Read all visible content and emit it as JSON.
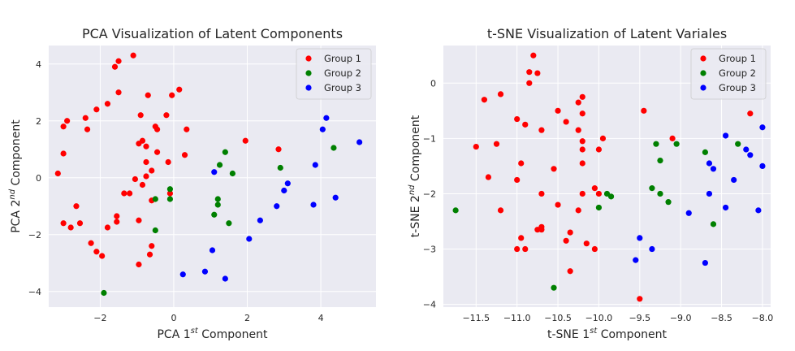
{
  "chart_data": [
    {
      "type": "scatter",
      "title": "PCA Visualization of Latent Components",
      "xlabel": {
        "base": "PCA 1",
        "sup": "st",
        "rest": " Component"
      },
      "ylabel": {
        "base": "PCA 2",
        "sup": "nd",
        "rest": " Component"
      },
      "xlim": [
        -3.4,
        5.5
      ],
      "ylim": [
        -4.55,
        4.65
      ],
      "xticks": [
        -2,
        0,
        2,
        4
      ],
      "yticks": [
        -4,
        -2,
        0,
        2,
        4
      ],
      "xtick_labels": [
        "−2",
        "0",
        "2",
        "4"
      ],
      "ytick_labels": [
        "−4",
        "−2",
        "0",
        "2",
        "4"
      ],
      "grid": true,
      "legend_position": "top-right",
      "series": [
        {
          "name": "Group 1",
          "color": "#ff0000",
          "points": [
            [
              -1.1,
              4.3
            ],
            [
              -1.5,
              4.1
            ],
            [
              -1.6,
              3.9
            ],
            [
              -0.7,
              2.9
            ],
            [
              -0.05,
              2.9
            ],
            [
              0.15,
              3.1
            ],
            [
              -1.5,
              3.0
            ],
            [
              -1.8,
              2.6
            ],
            [
              -3.0,
              1.8
            ],
            [
              -2.9,
              2.0
            ],
            [
              -2.4,
              2.1
            ],
            [
              -2.35,
              1.7
            ],
            [
              -2.1,
              2.4
            ],
            [
              -0.9,
              2.2
            ],
            [
              -0.2,
              2.2
            ],
            [
              -0.5,
              1.8
            ],
            [
              -0.45,
              1.7
            ],
            [
              -0.85,
              1.3
            ],
            [
              -0.95,
              1.2
            ],
            [
              -0.75,
              1.1
            ],
            [
              -0.45,
              0.9
            ],
            [
              0.35,
              1.7
            ],
            [
              0.3,
              0.8
            ],
            [
              -3.0,
              0.85
            ],
            [
              -0.15,
              0.55
            ],
            [
              -0.75,
              0.55
            ],
            [
              -0.6,
              0.25
            ],
            [
              -3.15,
              0.15
            ],
            [
              -0.75,
              0.05
            ],
            [
              -1.05,
              -0.05
            ],
            [
              -0.85,
              -0.25
            ],
            [
              -0.1,
              -0.55
            ],
            [
              -1.35,
              -0.55
            ],
            [
              -1.2,
              -0.55
            ],
            [
              -0.6,
              -0.8
            ],
            [
              -2.65,
              -1.0
            ],
            [
              -1.55,
              -1.35
            ],
            [
              -1.55,
              -1.55
            ],
            [
              -0.95,
              -1.5
            ],
            [
              -3.0,
              -1.6
            ],
            [
              -2.55,
              -1.6
            ],
            [
              -2.8,
              -1.75
            ],
            [
              -1.8,
              -1.75
            ],
            [
              -2.25,
              -2.3
            ],
            [
              -2.1,
              -2.6
            ],
            [
              -1.95,
              -2.75
            ],
            [
              -0.6,
              -2.4
            ],
            [
              -0.65,
              -2.7
            ],
            [
              -0.95,
              -3.05
            ],
            [
              1.95,
              1.3
            ],
            [
              2.85,
              1.0
            ]
          ]
        },
        {
          "name": "Group 2",
          "color": "#008000",
          "points": [
            [
              1.4,
              0.9
            ],
            [
              1.25,
              0.45
            ],
            [
              1.6,
              0.15
            ],
            [
              -0.1,
              -0.4
            ],
            [
              -0.1,
              -0.75
            ],
            [
              -0.5,
              -0.75
            ],
            [
              1.2,
              -0.75
            ],
            [
              1.2,
              -0.95
            ],
            [
              1.1,
              -1.3
            ],
            [
              1.5,
              -1.6
            ],
            [
              -0.5,
              -1.85
            ],
            [
              2.9,
              0.35
            ],
            [
              4.35,
              1.05
            ],
            [
              -1.9,
              -4.05
            ]
          ]
        },
        {
          "name": "Group 3",
          "color": "#0000ff",
          "points": [
            [
              4.15,
              2.1
            ],
            [
              4.05,
              1.7
            ],
            [
              5.05,
              1.25
            ],
            [
              3.85,
              0.45
            ],
            [
              1.1,
              0.2
            ],
            [
              3.1,
              -0.2
            ],
            [
              3.0,
              -0.45
            ],
            [
              4.4,
              -0.7
            ],
            [
              3.8,
              -0.95
            ],
            [
              2.8,
              -1.0
            ],
            [
              2.35,
              -1.5
            ],
            [
              2.05,
              -2.15
            ],
            [
              1.05,
              -2.55
            ],
            [
              0.25,
              -3.4
            ],
            [
              0.85,
              -3.3
            ],
            [
              1.4,
              -3.55
            ]
          ]
        }
      ]
    },
    {
      "type": "scatter",
      "title": "t-SNE Visualization of Latent Variales",
      "xlabel": {
        "base": "t-SNE 1",
        "sup": "st",
        "rest": " Component"
      },
      "ylabel": {
        "base": "t-SNE 2",
        "sup": "nd",
        "rest": " Component"
      },
      "xlim": [
        -11.9,
        -7.9
      ],
      "ylim": [
        -4.05,
        0.68
      ],
      "xticks": [
        -11.5,
        -11.0,
        -10.5,
        -10.0,
        -9.5,
        -9.0,
        -8.5,
        -8.0
      ],
      "yticks": [
        0,
        -1,
        -2,
        -3,
        -4
      ],
      "xtick_labels": [
        "−11.5",
        "−11.0",
        "−10.5",
        "−10.0",
        "−9.5",
        "−9.0",
        "−8.5",
        "−8.0"
      ],
      "ytick_labels": [
        "0",
        "−1",
        "−2",
        "−3",
        "−4"
      ],
      "grid": true,
      "legend_position": "top-right",
      "series": [
        {
          "name": "Group 1",
          "color": "#ff0000",
          "points": [
            [
              -10.8,
              0.5
            ],
            [
              -10.85,
              0.2
            ],
            [
              -10.75,
              0.18
            ],
            [
              -10.85,
              0.0
            ],
            [
              -10.2,
              -0.25
            ],
            [
              -10.25,
              -0.35
            ],
            [
              -11.2,
              -0.2
            ],
            [
              -11.4,
              -0.3
            ],
            [
              -10.5,
              -0.5
            ],
            [
              -10.2,
              -0.55
            ],
            [
              -11.0,
              -0.65
            ],
            [
              -10.4,
              -0.7
            ],
            [
              -10.9,
              -0.75
            ],
            [
              -10.7,
              -0.85
            ],
            [
              -10.25,
              -0.85
            ],
            [
              -9.95,
              -1.0
            ],
            [
              -10.2,
              -1.05
            ],
            [
              -10.2,
              -1.2
            ],
            [
              -10.0,
              -1.2
            ],
            [
              -11.5,
              -1.15
            ],
            [
              -11.25,
              -1.1
            ],
            [
              -10.2,
              -1.45
            ],
            [
              -10.95,
              -1.45
            ],
            [
              -10.55,
              -1.55
            ],
            [
              -11.35,
              -1.7
            ],
            [
              -11.0,
              -1.75
            ],
            [
              -10.05,
              -1.9
            ],
            [
              -10.0,
              -2.0
            ],
            [
              -10.2,
              -2.0
            ],
            [
              -10.7,
              -2.0
            ],
            [
              -10.5,
              -2.2
            ],
            [
              -11.2,
              -2.3
            ],
            [
              -10.25,
              -2.3
            ],
            [
              -10.7,
              -2.6
            ],
            [
              -10.75,
              -2.65
            ],
            [
              -10.7,
              -2.65
            ],
            [
              -10.35,
              -2.7
            ],
            [
              -10.95,
              -2.8
            ],
            [
              -10.4,
              -2.85
            ],
            [
              -10.15,
              -2.9
            ],
            [
              -11.0,
              -3.0
            ],
            [
              -10.9,
              -3.0
            ],
            [
              -10.05,
              -3.0
            ],
            [
              -10.35,
              -3.4
            ],
            [
              -9.5,
              -3.9
            ],
            [
              -9.45,
              -0.5
            ],
            [
              -9.1,
              -1.0
            ],
            [
              -8.15,
              -0.55
            ]
          ]
        },
        {
          "name": "Group 2",
          "color": "#008000",
          "points": [
            [
              -9.3,
              -1.1
            ],
            [
              -9.05,
              -1.1
            ],
            [
              -9.25,
              -1.4
            ],
            [
              -9.35,
              -1.9
            ],
            [
              -9.25,
              -2.0
            ],
            [
              -9.15,
              -2.15
            ],
            [
              -9.9,
              -2.0
            ],
            [
              -9.85,
              -2.05
            ],
            [
              -10.0,
              -2.25
            ],
            [
              -8.7,
              -1.25
            ],
            [
              -8.3,
              -1.1
            ],
            [
              -8.6,
              -2.55
            ],
            [
              -11.75,
              -2.3
            ],
            [
              -10.55,
              -3.7
            ]
          ]
        },
        {
          "name": "Group 3",
          "color": "#0000ff",
          "points": [
            [
              -8.0,
              -0.8
            ],
            [
              -8.45,
              -0.95
            ],
            [
              -8.2,
              -1.2
            ],
            [
              -8.15,
              -1.3
            ],
            [
              -8.65,
              -1.45
            ],
            [
              -8.6,
              -1.55
            ],
            [
              -8.0,
              -1.5
            ],
            [
              -8.35,
              -1.75
            ],
            [
              -8.65,
              -2.0
            ],
            [
              -8.45,
              -2.25
            ],
            [
              -8.05,
              -2.3
            ],
            [
              -8.9,
              -2.35
            ],
            [
              -9.5,
              -2.8
            ],
            [
              -9.35,
              -3.0
            ],
            [
              -9.55,
              -3.2
            ],
            [
              -8.7,
              -3.25
            ]
          ]
        }
      ]
    }
  ]
}
